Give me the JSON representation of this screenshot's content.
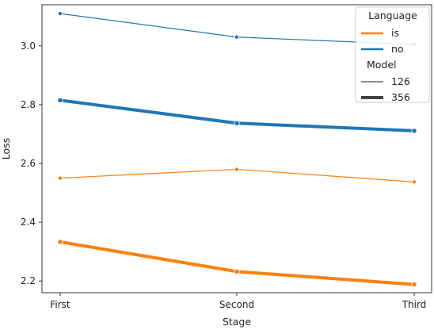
{
  "chart_data": {
    "type": "line",
    "xlabel": "Stage",
    "ylabel": "Loss",
    "categories": [
      "First",
      "Second",
      "Third"
    ],
    "ylim": [
      2.16,
      3.14
    ],
    "yticks": [
      2.2,
      2.4,
      2.6,
      2.8,
      3.0
    ],
    "ytick_labels": [
      "2.2",
      "2.4",
      "2.6",
      "2.8",
      "3.0"
    ],
    "grid": false,
    "legend_position": "top-right",
    "series": [
      {
        "language": "no",
        "model": "126",
        "color": "#1f77b4",
        "values": [
          3.11,
          3.03,
          3.005
        ]
      },
      {
        "language": "no",
        "model": "356",
        "color": "#1f77b4",
        "values": [
          2.815,
          2.737,
          2.711
        ]
      },
      {
        "language": "is",
        "model": "126",
        "color": "#ff7f0e",
        "values": [
          2.55,
          2.58,
          2.537
        ]
      },
      {
        "language": "is",
        "model": "356",
        "color": "#ff7f0e",
        "values": [
          2.333,
          2.232,
          2.188
        ]
      }
    ],
    "legend": {
      "language_title": "Language",
      "languages": [
        {
          "label": "is",
          "color": "#ff7f0e"
        },
        {
          "label": "no",
          "color": "#1f77b4"
        }
      ],
      "model_title": "Model",
      "models": [
        {
          "label": "126",
          "width": "thin"
        },
        {
          "label": "356",
          "width": "thick"
        }
      ]
    }
  }
}
